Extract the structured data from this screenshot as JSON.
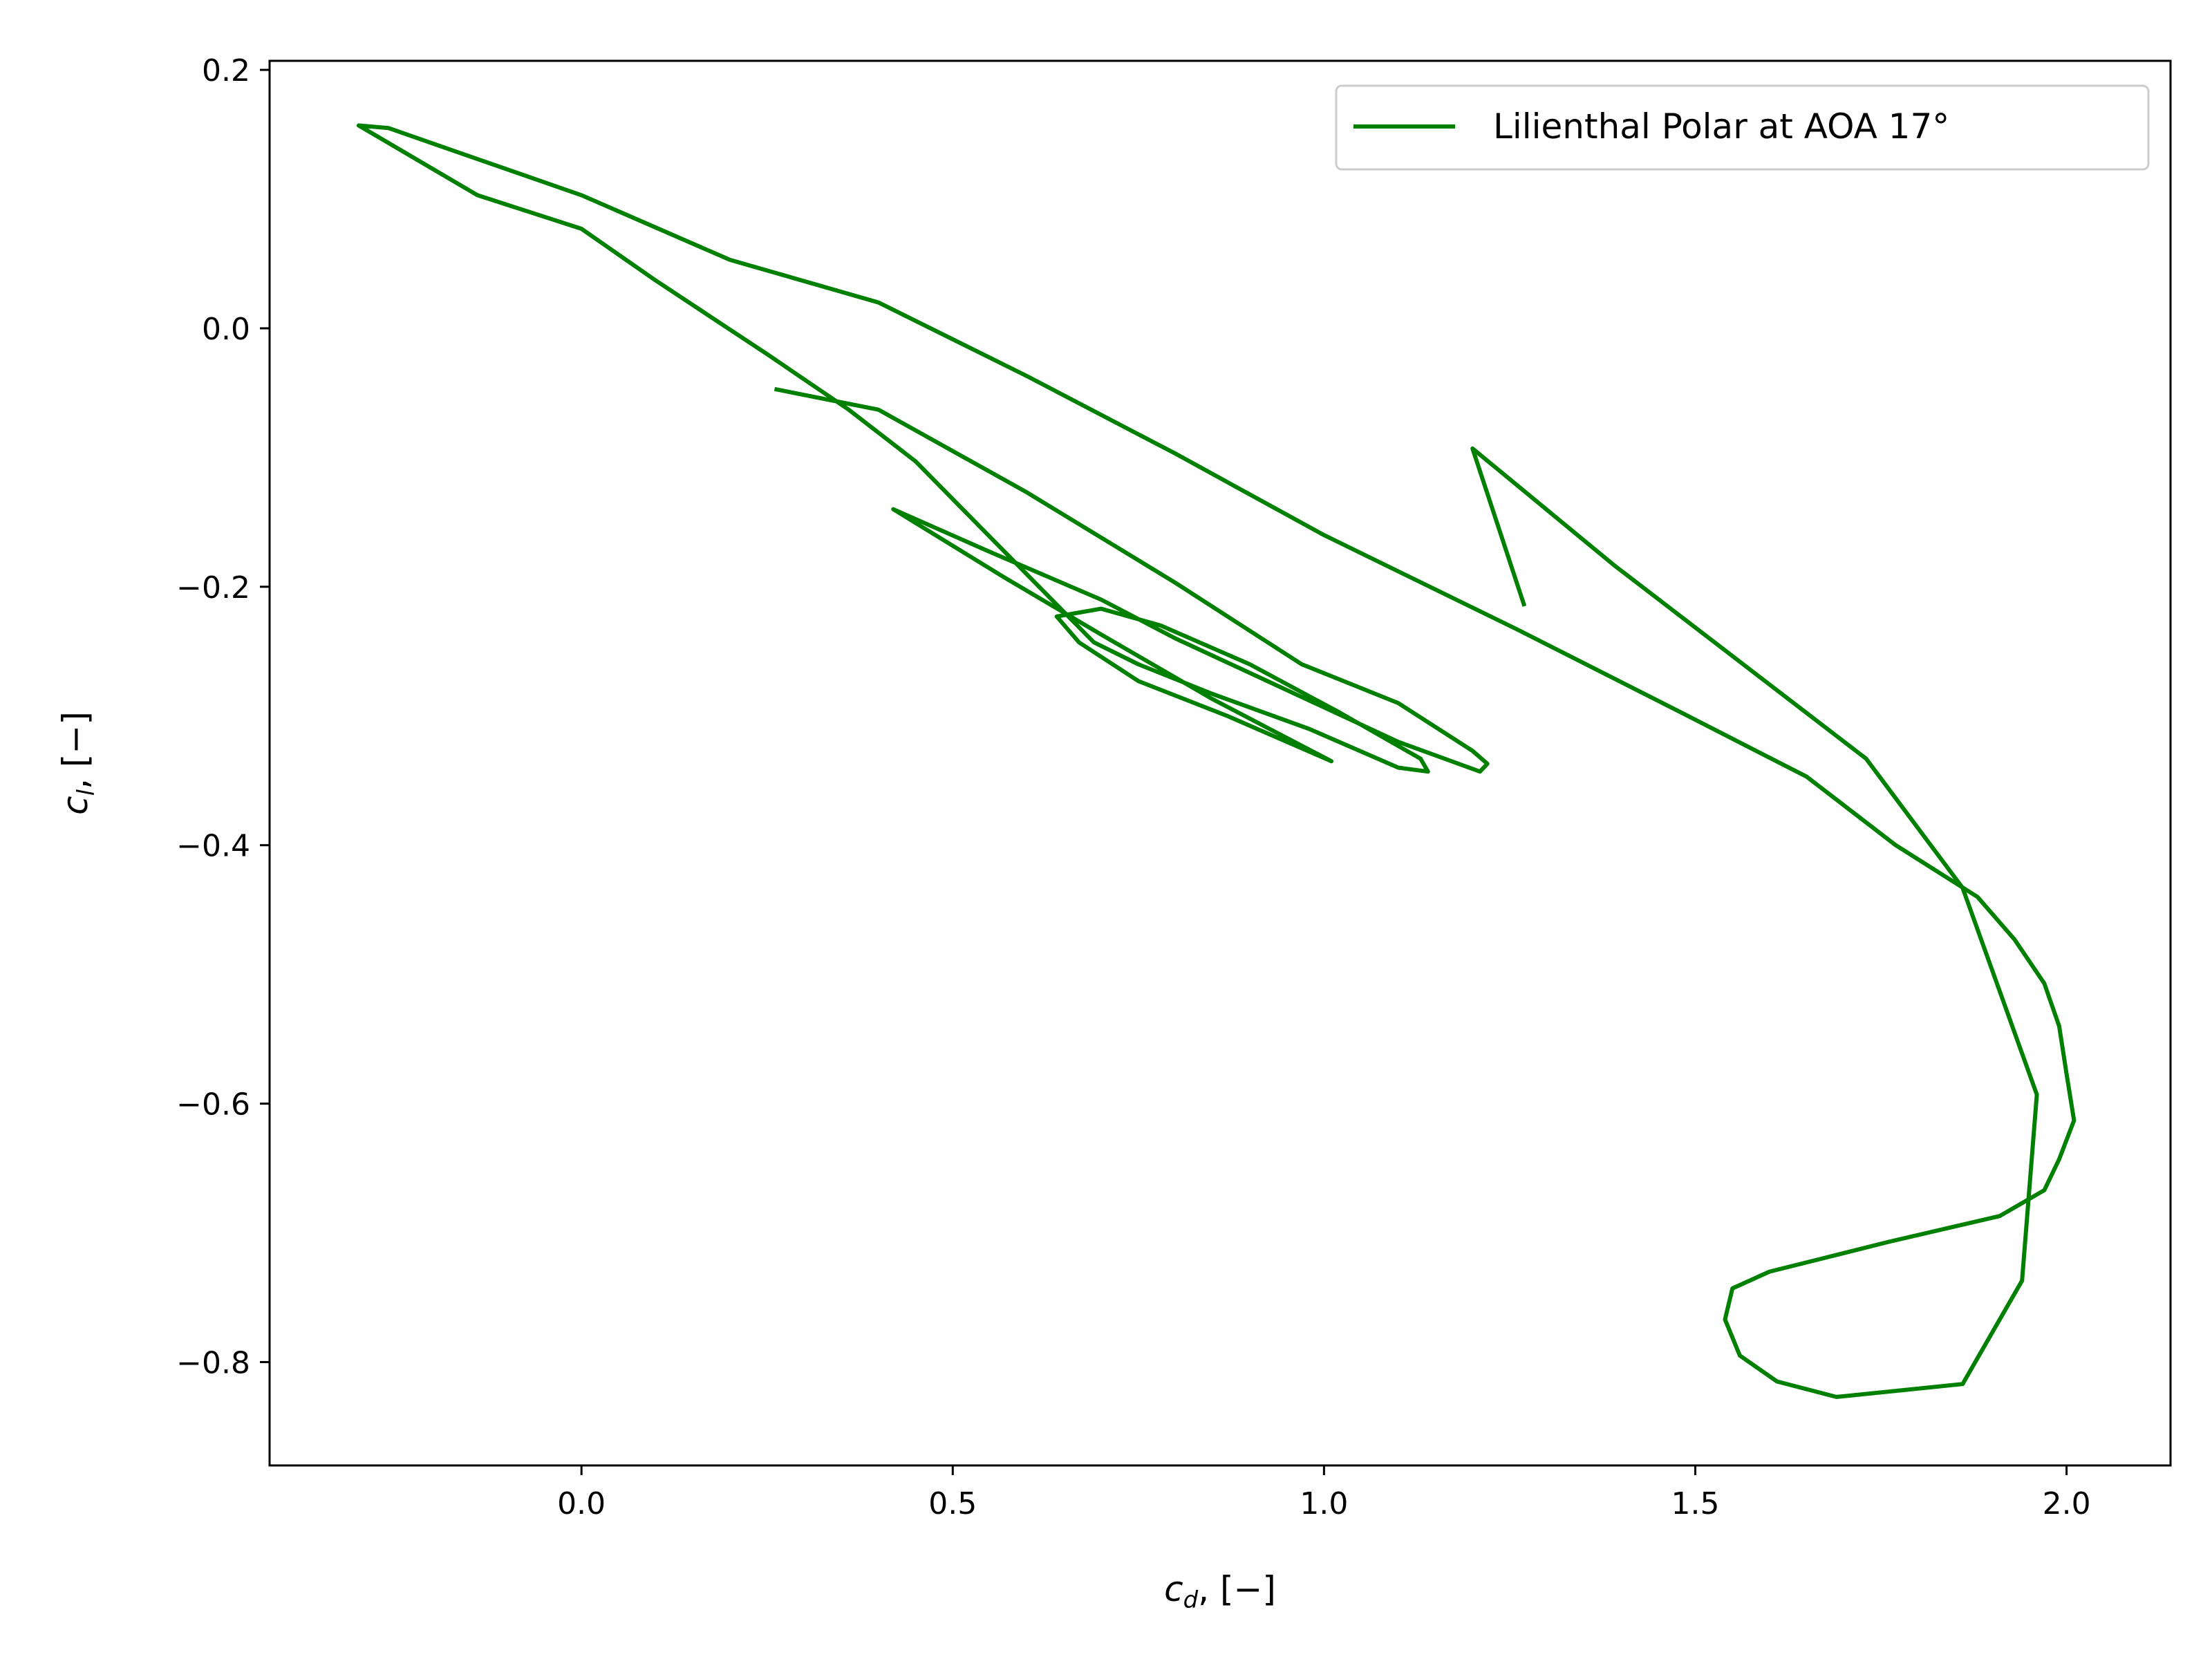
{
  "chart_data": {
    "type": "line",
    "title": "",
    "xlabel": "c_d, [−]",
    "ylabel": "c_l, [−]",
    "xlabel_main": "c",
    "xlabel_sub": "d",
    "xlabel_rest": ", [−]",
    "ylabel_main": "c",
    "ylabel_sub": "l",
    "ylabel_rest": ", [−]",
    "xlim": [
      -0.42,
      2.14
    ],
    "ylim": [
      -0.88,
      0.207
    ],
    "grid": false,
    "legend_position": "top-right",
    "x_ticks": [
      0.0,
      0.5,
      1.0,
      1.5,
      2.0
    ],
    "x_tick_labels": [
      "0.0",
      "0.5",
      "1.0",
      "1.5",
      "2.0"
    ],
    "y_ticks": [
      0.2,
      0.0,
      -0.2,
      -0.4,
      -0.6,
      -0.8
    ],
    "y_tick_labels": [
      "0.2",
      "0.0",
      "−0.2",
      "−0.4",
      "−0.6",
      "−0.8"
    ],
    "series": [
      {
        "name": "Lilienthal Polar at AOA 17°",
        "color": "#008000",
        "points": [
          [
            1.27,
            -0.215
          ],
          [
            1.2,
            -0.093
          ],
          [
            1.39,
            -0.183
          ],
          [
            1.73,
            -0.333
          ],
          [
            1.86,
            -0.433
          ],
          [
            1.96,
            -0.593
          ],
          [
            1.94,
            -0.737
          ],
          [
            1.86,
            -0.817
          ],
          [
            1.69,
            -0.827
          ],
          [
            1.61,
            -0.815
          ],
          [
            1.56,
            -0.795
          ],
          [
            1.54,
            -0.767
          ],
          [
            1.55,
            -0.743
          ],
          [
            1.6,
            -0.73
          ],
          [
            1.67,
            -0.72
          ],
          [
            1.76,
            -0.707
          ],
          [
            1.91,
            -0.687
          ],
          [
            1.97,
            -0.667
          ],
          [
            1.99,
            -0.643
          ],
          [
            2.01,
            -0.613
          ],
          [
            2.0,
            -0.577
          ],
          [
            1.99,
            -0.54
          ],
          [
            1.97,
            -0.507
          ],
          [
            1.93,
            -0.473
          ],
          [
            1.88,
            -0.44
          ],
          [
            1.77,
            -0.4
          ],
          [
            1.65,
            -0.347
          ],
          [
            1.48,
            -0.297
          ],
          [
            1.26,
            -0.233
          ],
          [
            1.0,
            -0.16
          ],
          [
            0.8,
            -0.097
          ],
          [
            0.6,
            -0.037
          ],
          [
            0.4,
            0.02
          ],
          [
            0.2,
            0.053
          ],
          [
            0.0,
            0.103
          ],
          [
            -0.17,
            0.137
          ],
          [
            -0.26,
            0.155
          ],
          [
            -0.3,
            0.157
          ],
          [
            -0.14,
            0.103
          ],
          [
            0.0,
            0.077
          ],
          [
            0.1,
            0.037
          ],
          [
            0.25,
            -0.02
          ],
          [
            0.36,
            -0.063
          ],
          [
            0.45,
            -0.103
          ],
          [
            0.57,
            -0.173
          ],
          [
            0.69,
            -0.243
          ],
          [
            0.75,
            -0.26
          ],
          [
            0.85,
            -0.283
          ],
          [
            0.98,
            -0.31
          ],
          [
            1.1,
            -0.34
          ],
          [
            1.14,
            -0.343
          ],
          [
            1.13,
            -0.333
          ],
          [
            1.02,
            -0.297
          ],
          [
            0.9,
            -0.26
          ],
          [
            0.78,
            -0.23
          ],
          [
            0.7,
            -0.217
          ],
          [
            0.64,
            -0.223
          ],
          [
            0.67,
            -0.243
          ],
          [
            0.75,
            -0.273
          ],
          [
            0.87,
            -0.3
          ],
          [
            1.01,
            -0.335
          ],
          [
            0.85,
            -0.287
          ],
          [
            0.7,
            -0.237
          ],
          [
            0.57,
            -0.193
          ],
          [
            0.42,
            -0.14
          ],
          [
            0.55,
            -0.173
          ],
          [
            0.7,
            -0.21
          ],
          [
            0.8,
            -0.24
          ],
          [
            0.95,
            -0.28
          ],
          [
            1.1,
            -0.32
          ],
          [
            1.21,
            -0.343
          ],
          [
            1.22,
            -0.337
          ],
          [
            1.2,
            -0.327
          ],
          [
            1.1,
            -0.29
          ],
          [
            0.97,
            -0.26
          ],
          [
            0.8,
            -0.197
          ],
          [
            0.6,
            -0.127
          ],
          [
            0.4,
            -0.063
          ],
          [
            0.26,
            -0.047
          ]
        ]
      }
    ]
  }
}
